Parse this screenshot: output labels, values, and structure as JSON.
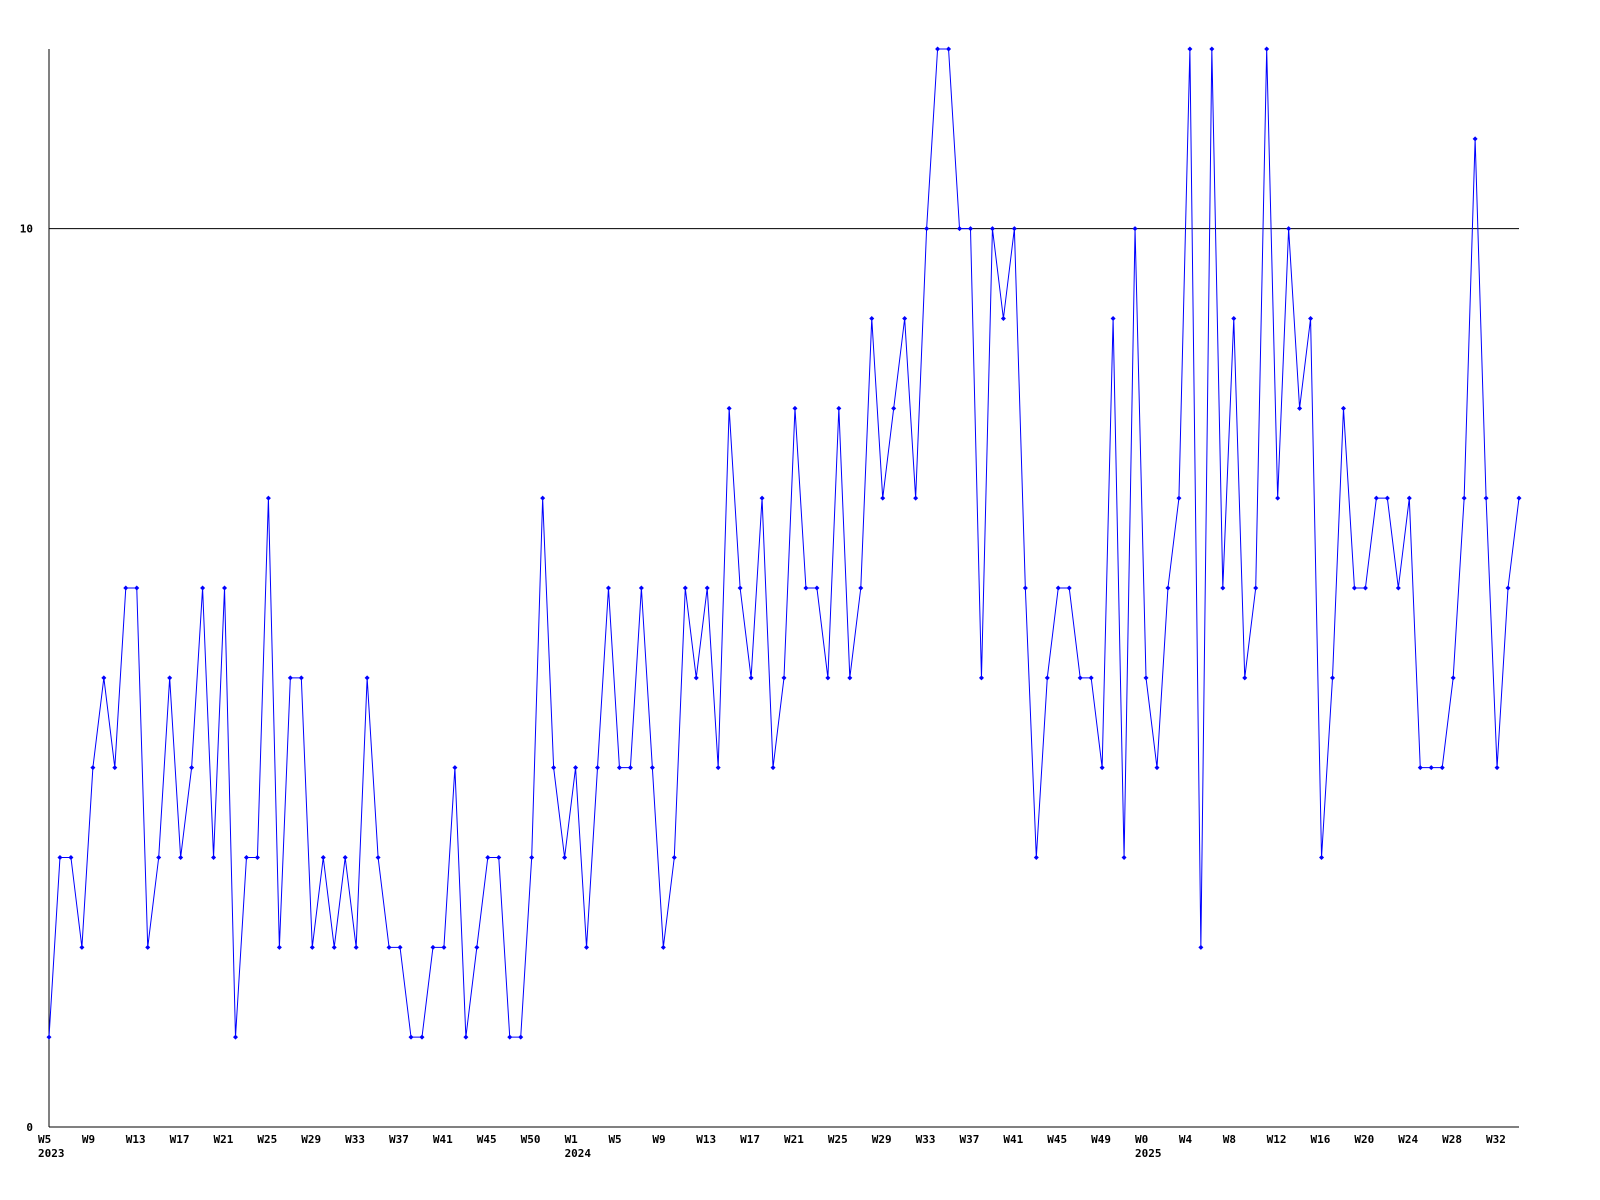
{
  "chart_data": {
    "type": "line",
    "categories": [
      "W5",
      null,
      null,
      null,
      "W9",
      null,
      null,
      null,
      "W13",
      null,
      null,
      null,
      "W17",
      null,
      null,
      null,
      "W21",
      null,
      null,
      null,
      "W25",
      null,
      null,
      null,
      "W29",
      null,
      null,
      null,
      "W33",
      null,
      null,
      null,
      "W37",
      null,
      null,
      null,
      "W41",
      null,
      null,
      null,
      "W45",
      null,
      null,
      null,
      "W50",
      null,
      null,
      null,
      "W1",
      null,
      null,
      null,
      "W5",
      null,
      null,
      null,
      "W9",
      null,
      null,
      null,
      "W13",
      null,
      null,
      null,
      "W17",
      null,
      null,
      null,
      "W21",
      null,
      null,
      null,
      "W25",
      null,
      null,
      null,
      "W29",
      null,
      null,
      null,
      "W33",
      null,
      null,
      null,
      "W37",
      null,
      null,
      null,
      "W41",
      null,
      null,
      null,
      "W45",
      null,
      null,
      null,
      "W49",
      null,
      null,
      null,
      "W0",
      null,
      null,
      null,
      "W4",
      null,
      null,
      null,
      "W8",
      null,
      null,
      null,
      "W12",
      null,
      null,
      null,
      "W16",
      null,
      null,
      null,
      "W20",
      null,
      null,
      null,
      "W24",
      null,
      null,
      null,
      "W28",
      null,
      null,
      null,
      "W32",
      null,
      null
    ],
    "year_labels": [
      "2023",
      null,
      null,
      null,
      null,
      null,
      null,
      null,
      null,
      null,
      null,
      null,
      null,
      null,
      null,
      null,
      null,
      null,
      null,
      null,
      null,
      null,
      null,
      null,
      null,
      null,
      null,
      null,
      null,
      null,
      null,
      null,
      null,
      null,
      null,
      null,
      null,
      null,
      null,
      null,
      null,
      null,
      null,
      null,
      null,
      null,
      null,
      null,
      "2024",
      null,
      null,
      null,
      null,
      null,
      null,
      null,
      null,
      null,
      null,
      null,
      null,
      null,
      null,
      null,
      null,
      null,
      null,
      null,
      null,
      null,
      null,
      null,
      null,
      null,
      null,
      null,
      null,
      null,
      null,
      null,
      null,
      null,
      null,
      null,
      null,
      null,
      null,
      null,
      null,
      null,
      null,
      null,
      null,
      null,
      null,
      null,
      null,
      null,
      null,
      null,
      "2025",
      null,
      null,
      null,
      null,
      null,
      null,
      null,
      null,
      null,
      null,
      null,
      null,
      null,
      null,
      null,
      null,
      null,
      null,
      null,
      null,
      null,
      null,
      null,
      null,
      null,
      null,
      null,
      null,
      null,
      null,
      null,
      null,
      null,
      null
    ],
    "series": [
      {
        "color": "#0000ff",
        "values": [
          1,
          3,
          3,
          2,
          4,
          5,
          4,
          6,
          6,
          2,
          3,
          5,
          3,
          4,
          6,
          3,
          6,
          1,
          3,
          3,
          7,
          2,
          5,
          5,
          2,
          3,
          2,
          3,
          2,
          5,
          3,
          2,
          2,
          1,
          1,
          2,
          2,
          4,
          1,
          2,
          3,
          3,
          1,
          1,
          3,
          7,
          4,
          3,
          4,
          2,
          4,
          6,
          4,
          4,
          6,
          4,
          2,
          3,
          6,
          5,
          6,
          4,
          8,
          6,
          5,
          7,
          4,
          5,
          8,
          6,
          6,
          5,
          8,
          5,
          6,
          9,
          7,
          8,
          9,
          7,
          10,
          12,
          12,
          10,
          10,
          5,
          10,
          9,
          10,
          6,
          3,
          5,
          6,
          6,
          5,
          5,
          4,
          9,
          3,
          10,
          5,
          4,
          6,
          7,
          12,
          2,
          12,
          6,
          9,
          5,
          6,
          12,
          7,
          10,
          8,
          9,
          3,
          5,
          8,
          6,
          6,
          7,
          7,
          6,
          7,
          4,
          4,
          4,
          5,
          7,
          11,
          7,
          4,
          6,
          7
        ]
      }
    ],
    "ylim": [
      0,
      12
    ],
    "yticks": [
      0,
      10
    ],
    "grid": true
  }
}
